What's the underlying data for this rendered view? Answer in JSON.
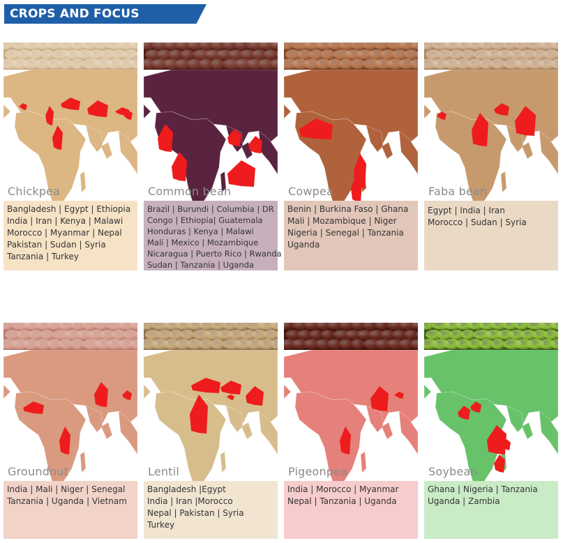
{
  "header": {
    "title": "CROPS AND FOCUS COUNTRIES"
  },
  "crops": [
    {
      "name": "Chickpea",
      "countries": [
        "Bangladesh | Egypt | Ethiopia",
        "India | Iran | Kenya | Malawi",
        "Morocco | Myanmar | Nepal",
        "Pakistan | Sudan | Syria",
        "Tanzania | Turkey"
      ],
      "land_color": "#dcb683",
      "box_color": "#f6e3c6",
      "seed_color": "#e2cdae",
      "seed_dark": "#c7ab87"
    },
    {
      "name": "Common bean",
      "countries": [
        "Brazil | Burundi | Columbia | DR",
        "Congo | Ethiopia| Guatemala",
        "Honduras | Kenya | Malawi",
        "Mali | Mexico | Mozambique",
        "Nicaragua | Puerto Rico | Rwanda",
        "Sudan | Tanzania | Uganda"
      ],
      "land_color": "#5a2340",
      "box_color": "#c7b0bd",
      "seed_color": "#7a3b30",
      "seed_dark": "#4e2018"
    },
    {
      "name": "Cowpea",
      "countries": [
        "Benin | Burkina Faso | Ghana",
        "Mali | Mozambique | Niger",
        "Nigeria | Senegal | Tanzania",
        "Uganda"
      ],
      "land_color": "#b0623c",
      "box_color": "#e2c6b9",
      "seed_color": "#b97a52",
      "seed_dark": "#7d4527"
    },
    {
      "name": "Faba bean",
      "countries": [
        "Egypt | India | Iran",
        "Morocco | Sudan | Syria"
      ],
      "land_color": "#c79a6e",
      "box_color": "#ead9c5",
      "seed_color": "#d3b596",
      "seed_dark": "#a98461"
    },
    {
      "name": "Groundnut",
      "countries": [
        "India | Mali | Niger | Senegal",
        "Tanzania | Uganda | Vietnam"
      ],
      "land_color": "#d99a80",
      "box_color": "#f2d3c8",
      "seed_color": "#d9a497",
      "seed_dark": "#b77a6c"
    },
    {
      "name": "Lentil",
      "countries": [
        "Bangladesh |Egypt",
        "India | Iran |Morocco",
        "Nepal | Pakistan | Syria",
        "Turkey"
      ],
      "land_color": "#d8bd8c",
      "box_color": "#f1e5d2",
      "seed_color": "#c8aa7c",
      "seed_dark": "#8e7350"
    },
    {
      "name": "Pigeonpea",
      "countries": [
        "India | Morocco | Myanmar",
        "Nepal | Tanzania | Uganda"
      ],
      "land_color": "#e5807a",
      "box_color": "#f7cccc",
      "seed_color": "#6b2a20",
      "seed_dark": "#3e140e"
    },
    {
      "name": "Soybean",
      "countries": [
        "Ghana | Nigeria | Tanzania",
        "Uganda | Zambia"
      ],
      "land_color": "#67c26a",
      "box_color": "#c9ebc6",
      "seed_color": "#8fbf3a",
      "seed_dark": "#3c5b16"
    }
  ]
}
